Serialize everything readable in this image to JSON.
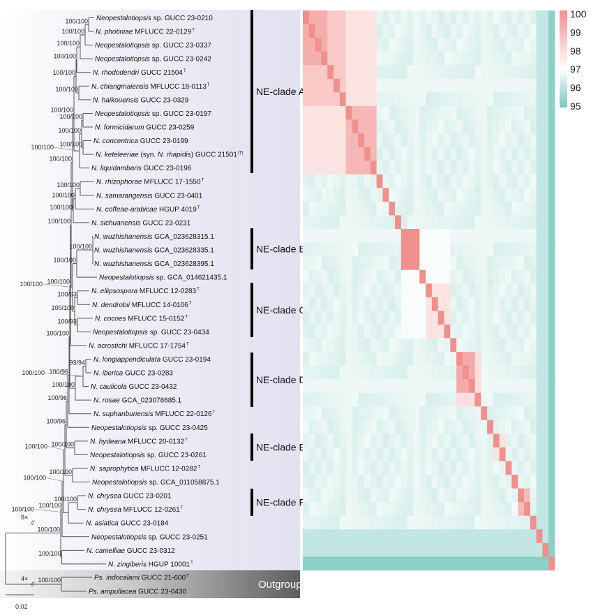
{
  "leaves": [
    {
      "parts": [
        {
          "t": "Neopestalotiopsis",
          "i": true
        },
        {
          "t": " sp. GUCC 23-0210"
        }
      ]
    },
    {
      "parts": [
        {
          "t": "N. photiniae",
          "i": true
        },
        {
          "t": " MFLUCC 22-0129"
        }
      ],
      "sup": "T"
    },
    {
      "parts": [
        {
          "t": "Neopestalotiopsis",
          "i": true
        },
        {
          "t": " sp. GUCC 23-0337"
        }
      ]
    },
    {
      "parts": [
        {
          "t": "Neopestalotiopsis",
          "i": true
        },
        {
          "t": " sp. GUCC 23-0242"
        }
      ]
    },
    {
      "parts": [
        {
          "t": "N. rhododendri",
          "i": true
        },
        {
          "t": " GUCC 21504"
        }
      ],
      "sup": "T"
    },
    {
      "parts": [
        {
          "t": "N. chiangmaiensis",
          "i": true
        },
        {
          "t": " MFLUCC 18-0113"
        }
      ],
      "sup": "T"
    },
    {
      "parts": [
        {
          "t": "N. haikouensis",
          "i": true
        },
        {
          "t": " GUCC 23-0329"
        }
      ]
    },
    {
      "parts": [
        {
          "t": "Neopestalotiopsis",
          "i": true
        },
        {
          "t": " sp. GUCC 23-0197"
        }
      ]
    },
    {
      "parts": [
        {
          "t": "N. formicidarum",
          "i": true
        },
        {
          "t": " GUCC 23-0259"
        }
      ]
    },
    {
      "parts": [
        {
          "t": "N. concentrica",
          "i": true
        },
        {
          "t": " GUCC 23-0199"
        }
      ]
    },
    {
      "parts": [
        {
          "t": "N. keteleeriae",
          "i": true
        },
        {
          "t": " (syn. "
        },
        {
          "t": "N. rhapidis",
          "i": true
        },
        {
          "t": ") GUCC 21501"
        }
      ],
      "sup": "(T)"
    },
    {
      "parts": [
        {
          "t": "N. liquidambaris",
          "i": true
        },
        {
          "t": " GUCC 23-0196"
        }
      ]
    },
    {
      "parts": [
        {
          "t": "N. rhizophorae",
          "i": true
        },
        {
          "t": " MFLUCC 17-1550"
        }
      ],
      "sup": "T"
    },
    {
      "parts": [
        {
          "t": "N. samarangensis",
          "i": true
        },
        {
          "t": " GUCC 23-0401"
        }
      ]
    },
    {
      "parts": [
        {
          "t": "N. coffeae-arabicae",
          "i": true
        },
        {
          "t": " HGUP 4019"
        }
      ],
      "sup": "T"
    },
    {
      "parts": [
        {
          "t": "N. sichuanensis",
          "i": true
        },
        {
          "t": " GUCC 23-0231"
        }
      ]
    },
    {
      "parts": [
        {
          "t": "N. wuzhishanensis",
          "i": true
        },
        {
          "t": " GCA_023628315.1"
        }
      ]
    },
    {
      "parts": [
        {
          "t": "N. wuzhishanensis",
          "i": true
        },
        {
          "t": " GCA_023628335.1"
        }
      ]
    },
    {
      "parts": [
        {
          "t": "N. wuzhishanensis",
          "i": true
        },
        {
          "t": " GCA_023628395.1"
        }
      ]
    },
    {
      "parts": [
        {
          "t": "Neopestalotiopsis",
          "i": true
        },
        {
          "t": " sp. GCA_014621435.1"
        }
      ]
    },
    {
      "parts": [
        {
          "t": "N. ellipsospora",
          "i": true
        },
        {
          "t": " MFLUCC 12-0283"
        }
      ],
      "sup": "T"
    },
    {
      "parts": [
        {
          "t": "N. dendrobii",
          "i": true
        },
        {
          "t": " MFLUCC 14-0106"
        }
      ],
      "sup": "T"
    },
    {
      "parts": [
        {
          "t": "N. cocoes",
          "i": true
        },
        {
          "t": " MFLUCC 15-0152"
        }
      ],
      "sup": "T"
    },
    {
      "parts": [
        {
          "t": "Neopestalotiopsis",
          "i": true
        },
        {
          "t": " sp. GUCC 23-0434"
        }
      ]
    },
    {
      "parts": [
        {
          "t": "N. acrostichi",
          "i": true
        },
        {
          "t": " MFLUCC 17-1754"
        }
      ],
      "sup": "T"
    },
    {
      "parts": [
        {
          "t": "N. longiappendiculata",
          "i": true
        },
        {
          "t": " GUCC 23-0194"
        }
      ]
    },
    {
      "parts": [
        {
          "t": "N. iberica",
          "i": true
        },
        {
          "t": " GUCC 23-0283"
        }
      ]
    },
    {
      "parts": [
        {
          "t": "N. caulicola",
          "i": true
        },
        {
          "t": " GUCC 23-0432"
        }
      ]
    },
    {
      "parts": [
        {
          "t": "N. rosae",
          "i": true
        },
        {
          "t": " GCA_023078685.1"
        }
      ]
    },
    {
      "parts": [
        {
          "t": "N. suphanburiensis",
          "i": true
        },
        {
          "t": " MFLUCC 22-0126"
        }
      ],
      "sup": "T"
    },
    {
      "parts": [
        {
          "t": "Neopestalotiopsis",
          "i": true
        },
        {
          "t": " sp. GUCC 23-0425"
        }
      ]
    },
    {
      "parts": [
        {
          "t": "N. hydeana",
          "i": true
        },
        {
          "t": " MFLUCC 20-0132"
        }
      ],
      "sup": "T"
    },
    {
      "parts": [
        {
          "t": "Neopestalotiopsis",
          "i": true
        },
        {
          "t": " sp. GUCC 23-0261"
        }
      ]
    },
    {
      "parts": [
        {
          "t": "N. saprophytica",
          "i": true
        },
        {
          "t": " MFLUCC 12-0282"
        }
      ],
      "sup": "T"
    },
    {
      "parts": [
        {
          "t": "Neopestalotiopsis",
          "i": true
        },
        {
          "t": " sp. GCA_011058875.1"
        }
      ]
    },
    {
      "parts": [
        {
          "t": "N. chrysea",
          "i": true
        },
        {
          "t": " GUCC 23-0201"
        }
      ]
    },
    {
      "parts": [
        {
          "t": "N. chrysea",
          "i": true
        },
        {
          "t": " MFLUCC 12-0261"
        }
      ],
      "sup": "T"
    },
    {
      "parts": [
        {
          "t": "N. asiatica",
          "i": true
        },
        {
          "t": " GUCC 23-0184"
        }
      ]
    },
    {
      "parts": [
        {
          "t": "Neopestalotiopsis",
          "i": true
        },
        {
          "t": " sp. GUCC 23-0251"
        }
      ]
    },
    {
      "parts": [
        {
          "t": "N. camelliae",
          "i": true
        },
        {
          "t": " GUCC 23-0312"
        }
      ]
    },
    {
      "parts": [
        {
          "t": "N. zingiberis",
          "i": true
        },
        {
          "t": " HGUP 10001"
        }
      ],
      "sup": "T"
    }
  ],
  "outgroup_leaves": [
    {
      "parts": [
        {
          "t": "Ps. indocalami",
          "i": true
        },
        {
          "t": " GUCC 21-600"
        }
      ],
      "sup": "T"
    },
    {
      "parts": [
        {
          "t": "Ps. ampullacea",
          "i": true
        },
        {
          "t": " GUCC 23-0430"
        }
      ]
    }
  ],
  "supports": [
    "100/100",
    "100/100",
    "100/100",
    "100/100",
    "100/96",
    "100/96",
    "100/96",
    "100/100",
    "100/100",
    "100/100",
    "100/100",
    "100/100",
    "100/100",
    "100/100",
    "100/100",
    "100/100",
    "100/100",
    "100/100",
    "100/100",
    "100/100",
    "100/100",
    "100/100",
    "100/100",
    "100/100",
    "100/100",
    "100/100",
    "100/100",
    "100/100",
    "100/100",
    "100/93",
    "100/93",
    "100/100",
    "100/100",
    "93/94",
    "100/100",
    "100/100",
    "100/100",
    "100/100",
    "100/100",
    "100/100"
  ],
  "clades": [
    {
      "label": "NE-clade A"
    },
    {
      "label": "NE-clade B"
    },
    {
      "label": "NE-clade C"
    },
    {
      "label": "NE-clade D"
    },
    {
      "label": "NE-clade E"
    },
    {
      "label": "NE-clade F"
    }
  ],
  "outgroup_label": "Outgroup",
  "ingroup_break": "8×",
  "outgroup_break": "4×",
  "scale_bar_label": "0.02",
  "heatmap": {
    "colorbar_ticks": [
      "100",
      "99",
      "98",
      "97",
      "96",
      "95"
    ],
    "color_high": "#f08f8c",
    "color_mid": "#ffffff",
    "color_low": "#78c8bc",
    "range": [
      95,
      100
    ]
  },
  "colors": {
    "tree_panel": "#e3e3f1",
    "outgroup_band_dark": "#5e5e5e"
  }
}
